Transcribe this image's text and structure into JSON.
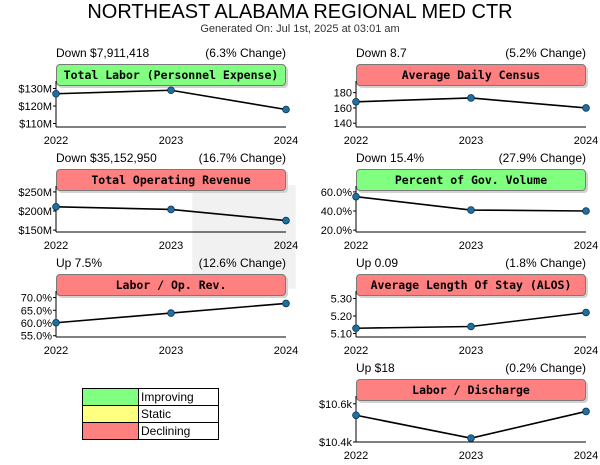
{
  "header": {
    "title": "NORTHEAST ALABAMA REGIONAL MED CTR",
    "generated": "Generated On: Jul 1st, 2025 at 03:01 am"
  },
  "colors": {
    "improving": "#80ff80",
    "static": "#ffff80",
    "declining": "#ff8080",
    "line": "#000000",
    "point": "#1f6fa0"
  },
  "legend": [
    {
      "label": "Improving",
      "color": "#80ff80"
    },
    {
      "label": "Static",
      "color": "#ffff80"
    },
    {
      "label": "Declining",
      "color": "#ff8080"
    }
  ],
  "chart_data": [
    {
      "type": "line",
      "title": "Total Labor (Personnel Expense)",
      "status": "improving",
      "change_text": "Down $7,911,418",
      "pct_text": "(6.3% Change)",
      "categories": [
        "2022",
        "2023",
        "2024"
      ],
      "values": [
        127,
        129,
        118
      ],
      "ylim": [
        108,
        132
      ],
      "yticks": [
        {
          "v": 130,
          "label": "$130M"
        },
        {
          "v": 120,
          "label": "$120M"
        },
        {
          "v": 110,
          "label": "$110M"
        }
      ]
    },
    {
      "type": "line",
      "title": "Average Daily Census",
      "status": "declining",
      "change_text": "Down 8.7",
      "pct_text": "(5.2% Change)",
      "categories": [
        "2022",
        "2023",
        "2024"
      ],
      "values": [
        168,
        173,
        160
      ],
      "ylim": [
        135,
        190
      ],
      "yticks": [
        {
          "v": 180,
          "label": "180"
        },
        {
          "v": 160,
          "label": "160"
        },
        {
          "v": 140,
          "label": "140"
        }
      ]
    },
    {
      "type": "line",
      "title": "Total Operating Revenue",
      "status": "declining",
      "change_text": "Down $35,152,950",
      "pct_text": "(16.7% Change)",
      "categories": [
        "2022",
        "2023",
        "2024"
      ],
      "values": [
        211,
        204,
        175
      ],
      "ylim": [
        145,
        255
      ],
      "yticks": [
        {
          "v": 250,
          "label": "$250M"
        },
        {
          "v": 200,
          "label": "$200M"
        },
        {
          "v": 150,
          "label": "$150M"
        }
      ]
    },
    {
      "type": "line",
      "title": "Percent of Gov. Volume",
      "status": "improving",
      "change_text": "Down 15.4%",
      "pct_text": "(27.9% Change)",
      "categories": [
        "2022",
        "2023",
        "2024"
      ],
      "values": [
        55,
        41,
        40
      ],
      "ylim": [
        18,
        62
      ],
      "yticks": [
        {
          "v": 60,
          "label": "60.0%"
        },
        {
          "v": 40,
          "label": "40.0%"
        },
        {
          "v": 20,
          "label": "20.0%"
        }
      ]
    },
    {
      "type": "line",
      "title": "Labor / Op. Rev.",
      "status": "declining",
      "change_text": "Up 7.5%",
      "pct_text": "(12.6% Change)",
      "categories": [
        "2022",
        "2023",
        "2024"
      ],
      "values": [
        60.1,
        63.9,
        67.7
      ],
      "ylim": [
        54.5,
        71
      ],
      "yticks": [
        {
          "v": 70,
          "label": "70.0%"
        },
        {
          "v": 65,
          "label": "65.0%"
        },
        {
          "v": 60,
          "label": "60.0%"
        },
        {
          "v": 55,
          "label": "55.0%"
        }
      ]
    },
    {
      "type": "line",
      "title": "Average Length Of Stay (ALOS)",
      "status": "declining",
      "change_text": "Up 0.09",
      "pct_text": "(1.8% Change)",
      "categories": [
        "2022",
        "2023",
        "2024"
      ],
      "values": [
        5.13,
        5.14,
        5.22
      ],
      "ylim": [
        5.08,
        5.32
      ],
      "yticks": [
        {
          "v": 5.3,
          "label": "5.30"
        },
        {
          "v": 5.2,
          "label": "5.20"
        },
        {
          "v": 5.1,
          "label": "5.10"
        }
      ]
    },
    {
      "type": "line",
      "title": "Labor / Discharge",
      "status": "declining",
      "change_text": "Up $18",
      "pct_text": "(0.2% Change)",
      "categories": [
        "2022",
        "2023",
        "2024"
      ],
      "values": [
        10.54,
        10.42,
        10.56
      ],
      "ylim": [
        10.4,
        10.62
      ],
      "yticks": [
        {
          "v": 10.6,
          "label": "$10.6k"
        },
        {
          "v": 10.4,
          "label": "$10.4k"
        }
      ]
    }
  ]
}
